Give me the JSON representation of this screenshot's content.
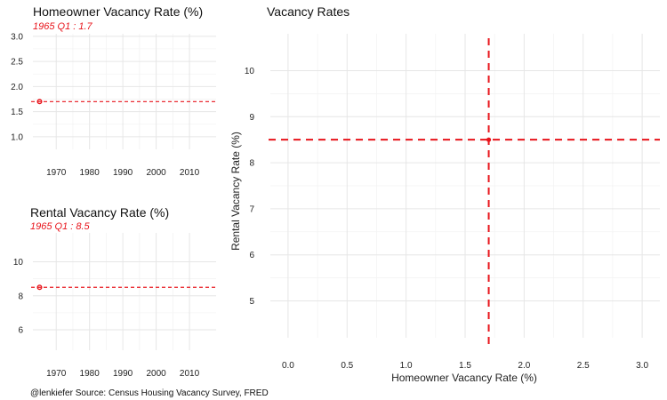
{
  "chart_data": [
    {
      "id": "homeowner",
      "type": "line",
      "title": "Homeowner Vacancy Rate (%)",
      "subtitle": "1965 Q1 : 1.7",
      "x_ticks": [
        1970,
        1980,
        1990,
        2000,
        2010
      ],
      "x_range": [
        1963,
        2018
      ],
      "y_ticks": [
        "1.0",
        "1.5",
        "2.0",
        "2.5",
        "3.0"
      ],
      "y_range": [
        0.75,
        3.05
      ],
      "point": {
        "x": 1965.0,
        "y": 1.7
      },
      "reference_line": 1.7,
      "color": "#e8141b"
    },
    {
      "id": "rental",
      "type": "line",
      "title": "Rental Vacancy Rate (%)",
      "subtitle": "1965 Q1 : 8.5",
      "x_ticks": [
        1970,
        1980,
        1990,
        2000,
        2010
      ],
      "x_range": [
        1963,
        2018
      ],
      "y_ticks": [
        "6",
        "8",
        "10"
      ],
      "y_range": [
        4.8,
        11.7
      ],
      "point": {
        "x": 1965.0,
        "y": 8.5
      },
      "reference_line": 8.5,
      "color": "#e8141b"
    },
    {
      "id": "vacancy",
      "type": "scatter",
      "title": "Vacancy Rates",
      "xlabel": "Homeowner Vacancy Rate (%)",
      "ylabel": "Rental Vacancy Rate (%)",
      "x_ticks": [
        "0.0",
        "0.5",
        "1.0",
        "1.5",
        "2.0",
        "2.5",
        "3.0"
      ],
      "x_range": [
        -0.15,
        3.15
      ],
      "y_ticks": [
        "5",
        "6",
        "7",
        "8",
        "9",
        "10"
      ],
      "y_range": [
        4.2,
        10.8
      ],
      "point": {
        "x": 1.7,
        "y": 8.5
      },
      "reference_x": 1.7,
      "reference_y": 8.5,
      "color": "#e8141b"
    }
  ],
  "caption": "@lenkiefer Source: Census Housing Vacancy Survey, FRED"
}
